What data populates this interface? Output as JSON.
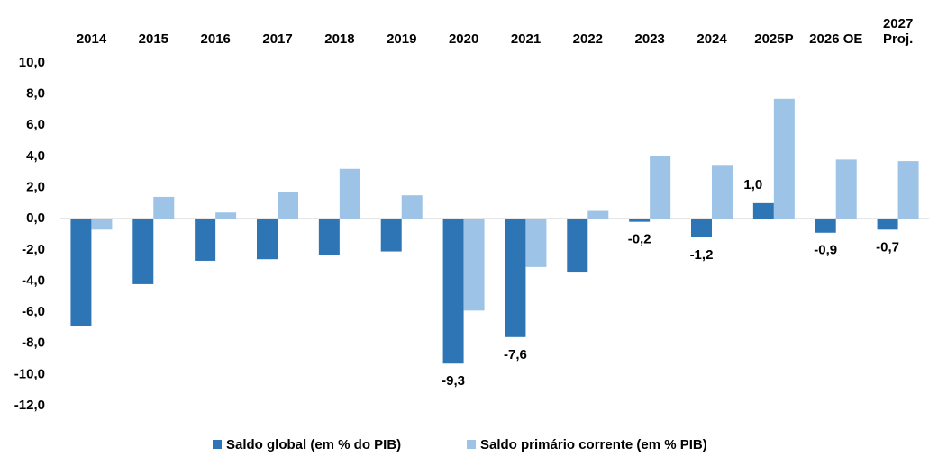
{
  "chart_data": {
    "type": "bar",
    "categories": [
      "2014",
      "2015",
      "2016",
      "2017",
      "2018",
      "2019",
      "2020",
      "2021",
      "2022",
      "2023",
      "2024",
      "2025P",
      "2026 OE",
      "2027\nProj."
    ],
    "series": [
      {
        "name": "Saldo global (em % do PIB)",
        "color": "#2e75b6",
        "values": [
          -6.9,
          -4.2,
          -2.7,
          -2.6,
          -2.3,
          -2.1,
          -9.3,
          -7.6,
          -3.4,
          -0.2,
          -1.2,
          1.0,
          -0.9,
          -0.7
        ],
        "value_labels": [
          null,
          null,
          null,
          null,
          null,
          null,
          "-9,3",
          "-7,6",
          null,
          "-0,2",
          "-1,2",
          "1,0",
          "-0,9",
          "-0,7"
        ]
      },
      {
        "name": "Saldo primário corrente (em % PIB)",
        "color": "#9dc3e6",
        "values": [
          -0.7,
          1.4,
          0.4,
          1.7,
          3.2,
          1.5,
          -5.9,
          -3.1,
          0.5,
          4.0,
          3.4,
          7.7,
          3.8,
          3.7
        ]
      }
    ],
    "ylim": [
      -12,
      10
    ],
    "yticks": [
      {
        "value": -12,
        "label": "-12,0"
      },
      {
        "value": -10,
        "label": "-10,0"
      },
      {
        "value": -8,
        "label": "-8,0"
      },
      {
        "value": -6,
        "label": "-6,0"
      },
      {
        "value": -4,
        "label": "-4,0"
      },
      {
        "value": -2,
        "label": "-2,0"
      },
      {
        "value": 0,
        "label": "0,0"
      },
      {
        "value": 2,
        "label": "2,0"
      },
      {
        "value": 4,
        "label": "4,0"
      },
      {
        "value": 6,
        "label": "6,0"
      },
      {
        "value": 8,
        "label": "8,0"
      },
      {
        "value": 10,
        "label": "10,0"
      }
    ],
    "grid": false,
    "legend": "bottom"
  }
}
